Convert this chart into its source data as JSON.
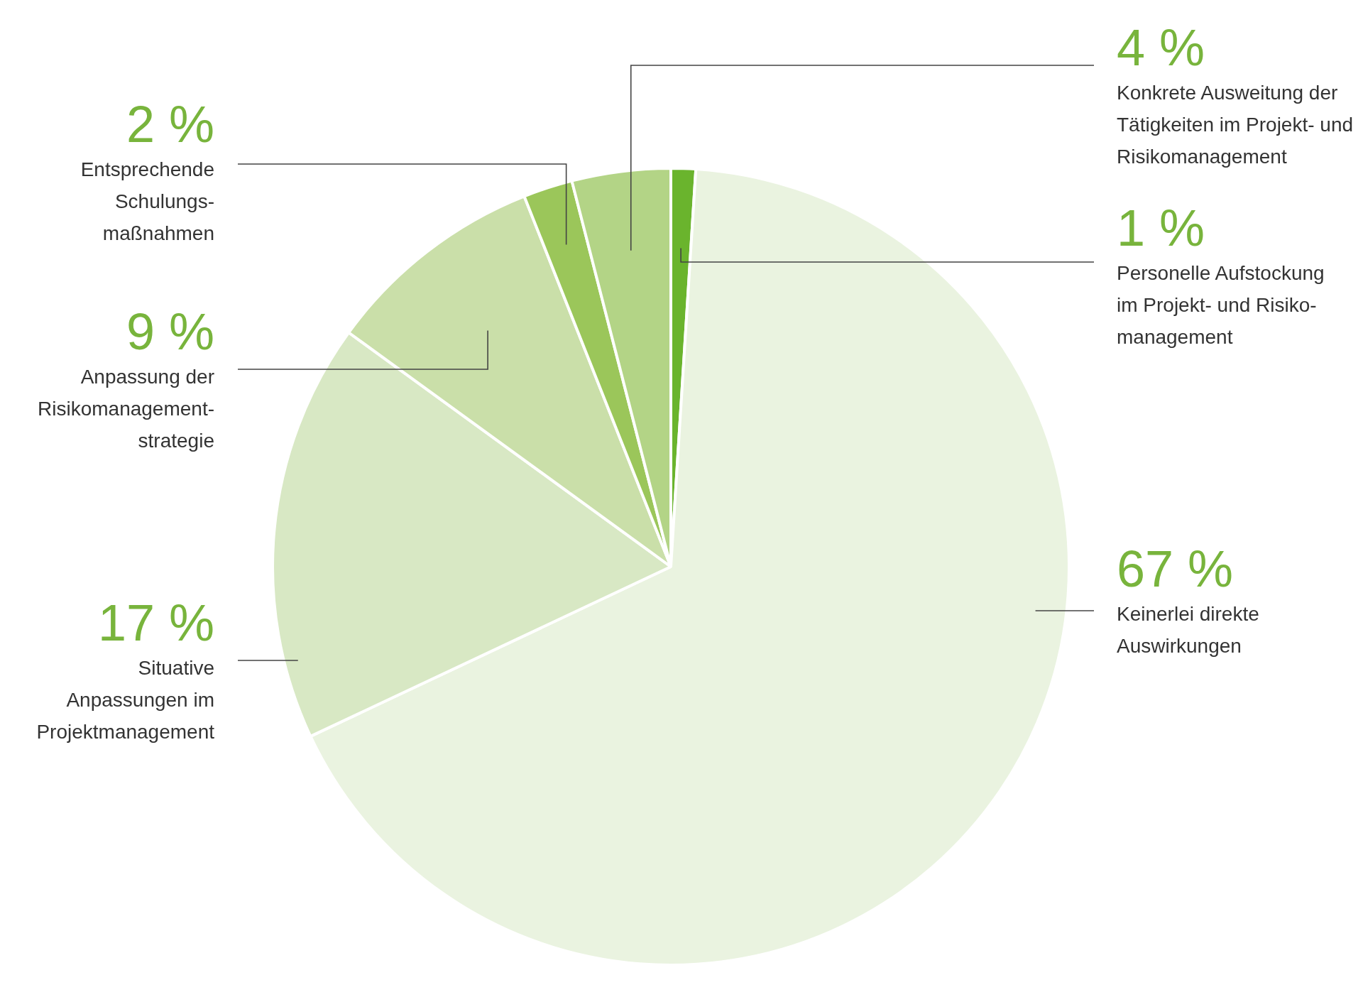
{
  "chart_data": {
    "type": "pie",
    "categories": [
      "Personelle Aufstockung\nim Projekt- und Risiko-\nmanagement",
      "Keinerlei direkte\nAuswirkungen",
      "Situative\nAnpassungen im\nProjektmanagement",
      "Anpassung der\nRisikomanagement-\nstrategie",
      "Entsprechende\nSchulungs-\nmaßnahmen",
      "Konkrete Ausweitung der\nTätigkeiten im Projekt- und\nRisikomanagement"
    ],
    "values": [
      1,
      67,
      17,
      9,
      2,
      4
    ],
    "value_labels": [
      "1 %",
      "67 %",
      "17 %",
      "9 %",
      "2 %",
      "4 %"
    ],
    "colors": [
      "#6ab42d",
      "#eaf3e0",
      "#d8e8c4",
      "#cadfa9",
      "#9bc65a",
      "#b3d486"
    ],
    "legend": false
  }
}
